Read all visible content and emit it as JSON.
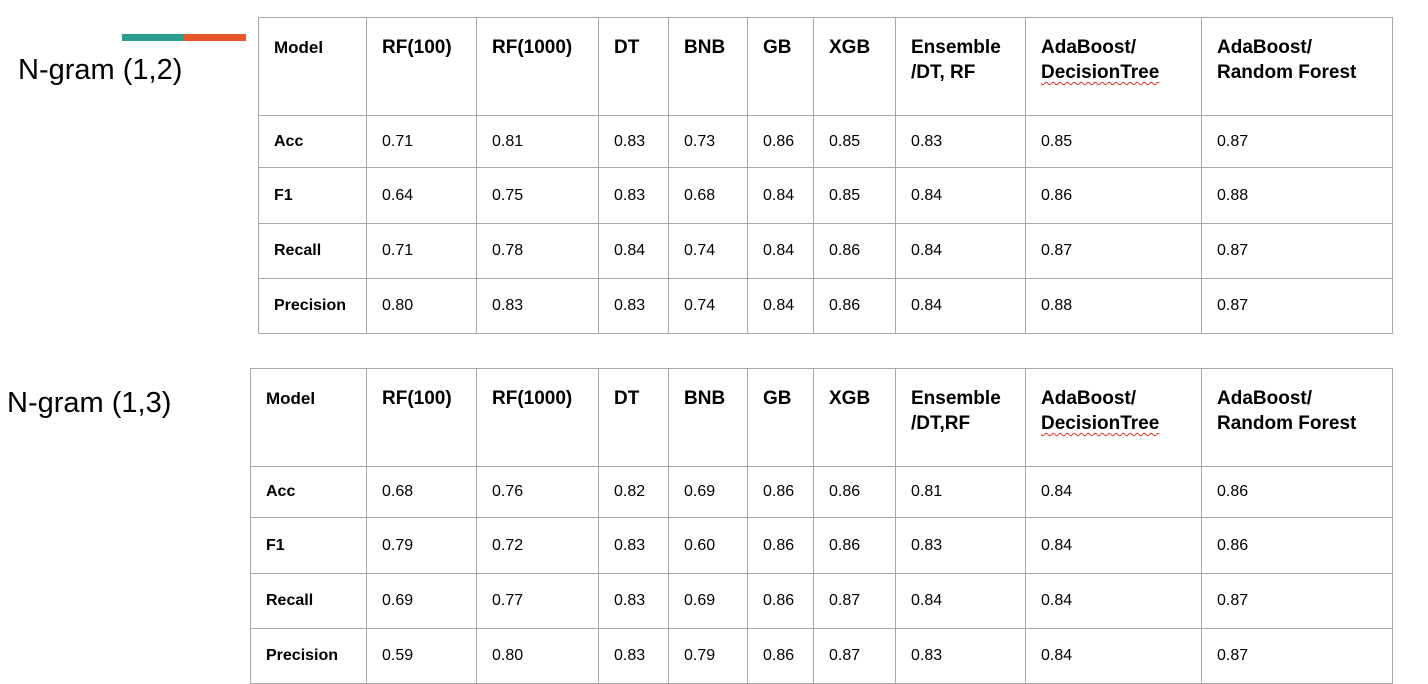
{
  "colors": {
    "accent_teal": "#2a9d8f",
    "accent_orange": "#e8562a",
    "grid_border": "#a8a8a8",
    "spellcheck": "#d93025"
  },
  "tables": [
    {
      "title": "N-gram (1,2)",
      "headers": [
        "Model",
        "RF(100)",
        "RF(1000)",
        "DT",
        "BNB",
        "GB",
        "XGB",
        "Ensemble /DT, RF",
        "AdaBoost/ DecisionTree",
        "AdaBoost/ Random Forest"
      ],
      "rows": [
        {
          "label": "Acc",
          "values": [
            "0.71",
            "0.81",
            "0.83",
            "0.73",
            "0.86",
            "0.85",
            "0.83",
            "0.85",
            "0.87"
          ]
        },
        {
          "label": "F1",
          "values": [
            "0.64",
            "0.75",
            "0.83",
            "0.68",
            "0.84",
            "0.85",
            "0.84",
            "0.86",
            "0.88"
          ]
        },
        {
          "label": "Recall",
          "values": [
            "0.71",
            "0.78",
            "0.84",
            "0.74",
            "0.84",
            "0.86",
            "0.84",
            "0.87",
            "0.87"
          ]
        },
        {
          "label": "Precision",
          "values": [
            "0.80",
            "0.83",
            "0.83",
            "0.74",
            "0.84",
            "0.86",
            "0.84",
            "0.88",
            "0.87"
          ]
        }
      ]
    },
    {
      "title": "N-gram (1,3)",
      "headers": [
        "Model",
        "RF(100)",
        "RF(1000)",
        "DT",
        "BNB",
        "GB",
        "XGB",
        "Ensemble /DT,RF",
        "AdaBoost/ DecisionTree",
        "AdaBoost/ Random Forest"
      ],
      "rows": [
        {
          "label": "Acc",
          "values": [
            "0.68",
            "0.76",
            "0.82",
            "0.69",
            "0.86",
            "0.86",
            "0.81",
            "0.84",
            "0.86"
          ]
        },
        {
          "label": "F1",
          "values": [
            "0.79",
            "0.72",
            "0.83",
            "0.60",
            "0.86",
            "0.86",
            "0.83",
            "0.84",
            "0.86"
          ]
        },
        {
          "label": "Recall",
          "values": [
            "0.69",
            "0.77",
            "0.83",
            "0.69",
            "0.86",
            "0.87",
            "0.84",
            "0.84",
            "0.87"
          ]
        },
        {
          "label": "Precision",
          "values": [
            "0.59",
            "0.80",
            "0.83",
            "0.79",
            "0.86",
            "0.87",
            "0.83",
            "0.84",
            "0.87"
          ]
        }
      ]
    }
  ]
}
